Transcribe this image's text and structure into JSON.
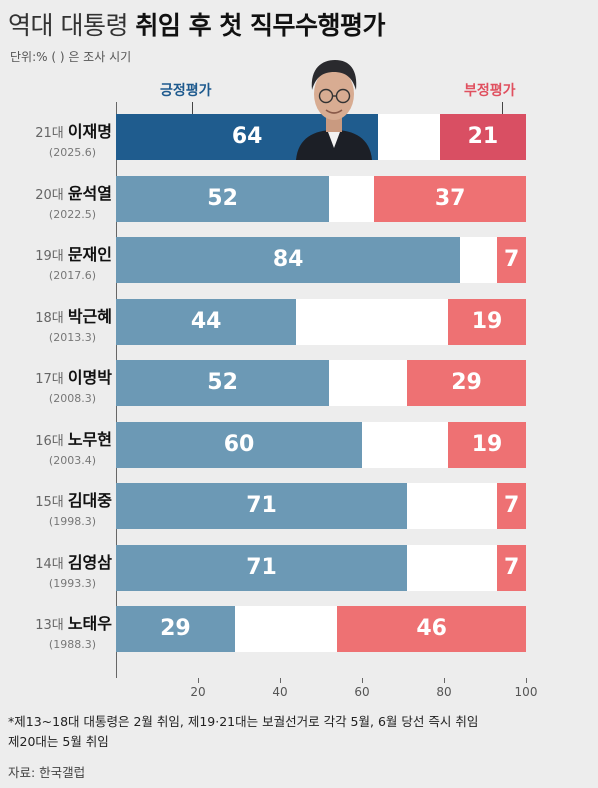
{
  "title": {
    "light": "역대 대통령",
    "bold": "취임 후 첫 직무수행평가"
  },
  "unit": "단위:% ( ) 은 조사 시기",
  "legend": {
    "positive": "긍정평가",
    "negative": "부정평가"
  },
  "colors": {
    "positive": "#6c99b5",
    "positive_highlight": "#1f5c8e",
    "negative": "#ee7173",
    "negative_highlight": "#d94f63",
    "neutral": "#ffffff"
  },
  "chart_data": {
    "type": "bar",
    "orientation": "horizontal",
    "stacked": true,
    "xlim": [
      0,
      100
    ],
    "x_ticks": [
      20,
      40,
      60,
      80,
      100
    ],
    "categories": [
      {
        "term": "21대",
        "name": "이재명",
        "date": "(2025.6)",
        "positive": 64,
        "negative": 21,
        "highlight": true
      },
      {
        "term": "20대",
        "name": "윤석열",
        "date": "(2022.5)",
        "positive": 52,
        "negative": 37
      },
      {
        "term": "19대",
        "name": "문재인",
        "date": "(2017.6)",
        "positive": 84,
        "negative": 7
      },
      {
        "term": "18대",
        "name": "박근혜",
        "date": "(2013.3)",
        "positive": 44,
        "negative": 19
      },
      {
        "term": "17대",
        "name": "이명박",
        "date": "(2008.3)",
        "positive": 52,
        "negative": 29
      },
      {
        "term": "16대",
        "name": "노무현",
        "date": "(2003.4)",
        "positive": 60,
        "negative": 19
      },
      {
        "term": "15대",
        "name": "김대중",
        "date": "(1998.3)",
        "positive": 71,
        "negative": 7
      },
      {
        "term": "14대",
        "name": "김영삼",
        "date": "(1993.3)",
        "positive": 71,
        "negative": 7
      },
      {
        "term": "13대",
        "name": "노태우",
        "date": "(1988.3)",
        "positive": 29,
        "negative": 46
      }
    ],
    "series": [
      {
        "name": "긍정평가",
        "key": "positive"
      },
      {
        "name": "부정평가",
        "key": "negative"
      }
    ]
  },
  "note_lines": [
    "*제13~18대 대통령은 2월 취임, 제19·21대는 보궐선거로 각각 5월, 6월 당선 즉시 취임",
    "제20대는 5월 취임"
  ],
  "source": "자료: 한국갤럽"
}
